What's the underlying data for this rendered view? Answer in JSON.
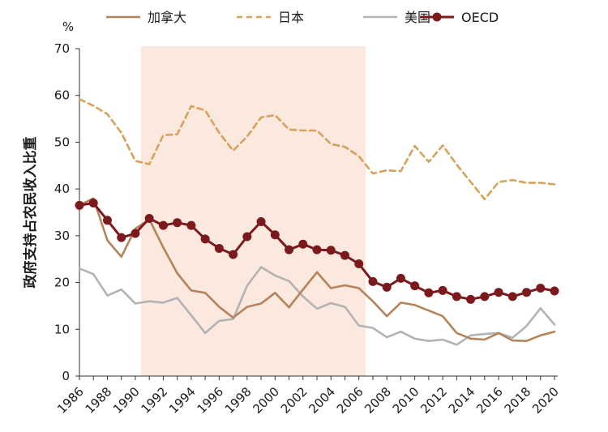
{
  "chart_data": {
    "type": "line",
    "title": "",
    "xlabel": "",
    "ylabel": "政府支持占农民收入比重",
    "yunit": "%",
    "ylim": [
      0,
      70
    ],
    "yticks": [
      0,
      10,
      20,
      30,
      40,
      50,
      60,
      70
    ],
    "x": [
      1986,
      1987,
      1988,
      1989,
      1990,
      1991,
      1992,
      1993,
      1994,
      1995,
      1996,
      1997,
      1998,
      1999,
      2000,
      2001,
      2002,
      2003,
      2004,
      2005,
      2006,
      2007,
      2008,
      2009,
      2010,
      2011,
      2012,
      2013,
      2014,
      2015,
      2016,
      2017,
      2018,
      2019,
      2020
    ],
    "xticks": [
      "1986",
      "1988",
      "1990",
      "1992",
      "1994",
      "1996",
      "1998",
      "2000",
      "2002",
      "2004",
      "2006",
      "2008",
      "2010",
      "2012",
      "2014",
      "2016",
      "2018",
      "2020"
    ],
    "shaded_region": {
      "from": 1990,
      "to": 2007,
      "color": "#fbe9df"
    },
    "series": [
      {
        "name": "加拿大",
        "color": "#b5835a",
        "style": "solid",
        "values": [
          36.5,
          38,
          29,
          25.5,
          31.5,
          33.5,
          27.5,
          22,
          18.3,
          17.8,
          14.8,
          12.5,
          14.8,
          15.5,
          17.8,
          14.7,
          18.5,
          22.2,
          18.8,
          19.4,
          18.8,
          16,
          12.8,
          15.7,
          15.2,
          14,
          12.8,
          9.2,
          8,
          7.8,
          9.2,
          7.6,
          7.5,
          8.7,
          9.5
        ]
      },
      {
        "name": "日本",
        "color": "#d6a25c",
        "style": "dashed",
        "values": [
          59.2,
          57.8,
          56,
          52,
          46,
          45.3,
          51.5,
          51.7,
          57.7,
          56.8,
          52,
          48.2,
          51.2,
          55.3,
          55.8,
          52.7,
          52.5,
          52.5,
          49.6,
          49,
          47,
          43.3,
          44,
          43.8,
          49.2,
          45.8,
          49.3,
          45.2,
          41.5,
          37.8,
          41.5,
          41.9,
          41.3,
          41.3,
          41
        ]
      },
      {
        "name": "美国",
        "color": "#b3b3b3",
        "style": "solid",
        "values": [
          23,
          21.8,
          17.2,
          18.5,
          15.5,
          16,
          15.7,
          16.7,
          13,
          9.2,
          11.8,
          12.2,
          19.3,
          23.3,
          21.5,
          20.3,
          17,
          14.4,
          15.6,
          14.8,
          10.8,
          10.3,
          8.3,
          9.5,
          8,
          7.5,
          7.8,
          6.7,
          8.7,
          9,
          9.2,
          8.2,
          10.7,
          14.5,
          11
        ]
      },
      {
        "name": "OECD",
        "color": "#7b1a1d",
        "style": "solid-markers",
        "values": [
          36.5,
          37,
          33.3,
          29.6,
          30.5,
          33.7,
          32.2,
          32.8,
          32.2,
          29.3,
          27.3,
          26,
          29.8,
          33,
          30.2,
          27,
          28.2,
          27,
          26.9,
          25.8,
          24,
          20.2,
          19,
          20.9,
          19.3,
          17.8,
          18.3,
          17,
          16.4,
          17,
          17.9,
          17,
          17.9,
          18.8,
          18.2
        ]
      }
    ]
  }
}
